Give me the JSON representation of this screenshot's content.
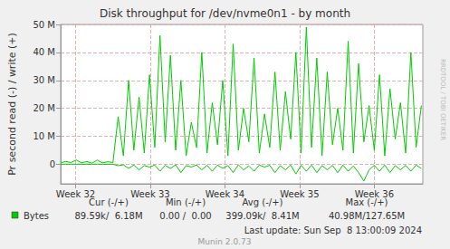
{
  "chart_data": {
    "type": "line",
    "title": "Disk throughput for /dev/nvme0n1 - by month",
    "y_label": "Pr second read (-) / write (+)",
    "x": [
      31.8,
      31.87,
      31.94,
      32.01,
      32.08,
      32.15,
      32.22,
      32.29,
      32.36,
      32.43,
      32.5,
      32.57,
      32.64,
      32.71,
      32.78,
      32.85,
      32.92,
      32.99,
      33.06,
      33.13,
      33.2,
      33.27,
      33.34,
      33.41,
      33.48,
      33.55,
      33.62,
      33.69,
      33.76,
      33.83,
      33.9,
      33.97,
      34.04,
      34.11,
      34.18,
      34.25,
      34.32,
      34.39,
      34.46,
      34.53,
      34.6,
      34.67,
      34.74,
      34.81,
      34.88,
      34.95,
      35.02,
      35.09,
      35.16,
      35.23,
      35.3,
      35.37,
      35.44,
      35.51,
      35.58,
      35.65,
      35.72,
      35.79,
      35.86,
      35.93,
      36.0,
      36.07,
      36.14,
      36.21,
      36.28,
      36.35,
      36.42,
      36.49,
      36.56,
      36.63
    ],
    "series": [
      {
        "name": "Bytes",
        "color": "#00cc00",
        "values": [
          500000,
          1000000,
          600000,
          1500000,
          500000,
          1000000,
          400000,
          1500000,
          500000,
          900000,
          600000,
          17000000,
          3000000,
          30000000,
          5000000,
          24000000,
          4000000,
          32000000,
          6000000,
          46000000,
          8000000,
          39000000,
          5000000,
          30000000,
          3000000,
          15000000,
          6000000,
          40000000,
          4000000,
          22000000,
          7000000,
          30000000,
          3000000,
          43000000,
          5000000,
          20000000,
          8000000,
          38000000,
          4000000,
          18000000,
          6000000,
          33000000,
          5000000,
          26000000,
          9000000,
          40000000,
          4000000,
          49000000,
          6000000,
          38000000,
          3000000,
          33000000,
          7000000,
          20000000,
          5000000,
          44000000,
          4000000,
          36000000,
          8000000,
          21000000,
          5000000,
          32000000,
          3000000,
          27000000,
          9000000,
          22000000,
          4000000,
          40000000,
          6000000,
          21000000
        ],
        "read_values": [
          0,
          0,
          0,
          0,
          0,
          0,
          0,
          0,
          0,
          0,
          0,
          -500000,
          -200000,
          -1500000,
          -300000,
          -2000000,
          -500000,
          -1000000,
          -300000,
          -2500000,
          -400000,
          -1500000,
          -200000,
          -3000000,
          -500000,
          -1000000,
          -300000,
          -2000000,
          -400000,
          -2500000,
          -300000,
          -1500000,
          -500000,
          -3000000,
          -200000,
          -2000000,
          -600000,
          -2500000,
          -300000,
          -1000000,
          -400000,
          -3000000,
          -500000,
          -2000000,
          -300000,
          -3500000,
          -400000,
          -2500000,
          -300000,
          -3000000,
          -500000,
          -2000000,
          -400000,
          -3000000,
          -300000,
          -2500000,
          -600000,
          -3000000,
          -6000000,
          -2000000,
          -400000,
          -2500000,
          -300000,
          -3000000,
          -500000,
          -2000000,
          -400000,
          -2500000,
          -300000,
          -1500000
        ]
      }
    ],
    "xlim": [
      31.8,
      36.65
    ],
    "xticks": [
      {
        "value": 32,
        "label": "Week 32"
      },
      {
        "value": 33,
        "label": "Week 33"
      },
      {
        "value": 34,
        "label": "Week 34"
      },
      {
        "value": 35,
        "label": "Week 35"
      },
      {
        "value": 36,
        "label": "Week 36"
      }
    ],
    "ylim": [
      -7000000,
      50000000
    ],
    "yticks": [
      0,
      {
        "value": 10000000,
        "label": "10 M"
      },
      {
        "value": 20000000,
        "label": "20 M"
      },
      {
        "value": 30000000,
        "label": "30 M"
      },
      {
        "value": 40000000,
        "label": "40 M"
      },
      {
        "value": 50000000,
        "label": "50 M"
      }
    ],
    "grid": true,
    "summary": {
      "columns": [
        "Cur (-/+)",
        "Min (-/+)",
        "Avg (-/+)",
        "Max (-/+)"
      ],
      "rows": [
        {
          "name": "Bytes",
          "cells": [
            "89.59k/  6.18M",
            "0.00 /  0.00",
            "399.09k/  8.41M",
            "40.98M/127.65M"
          ]
        }
      ]
    },
    "footer": "Last update: Sun Sep  8 13:00:09 2024",
    "credit": "Munin 2.0.73",
    "side_text": "RRDTOOL / TOBI OETIKER"
  }
}
